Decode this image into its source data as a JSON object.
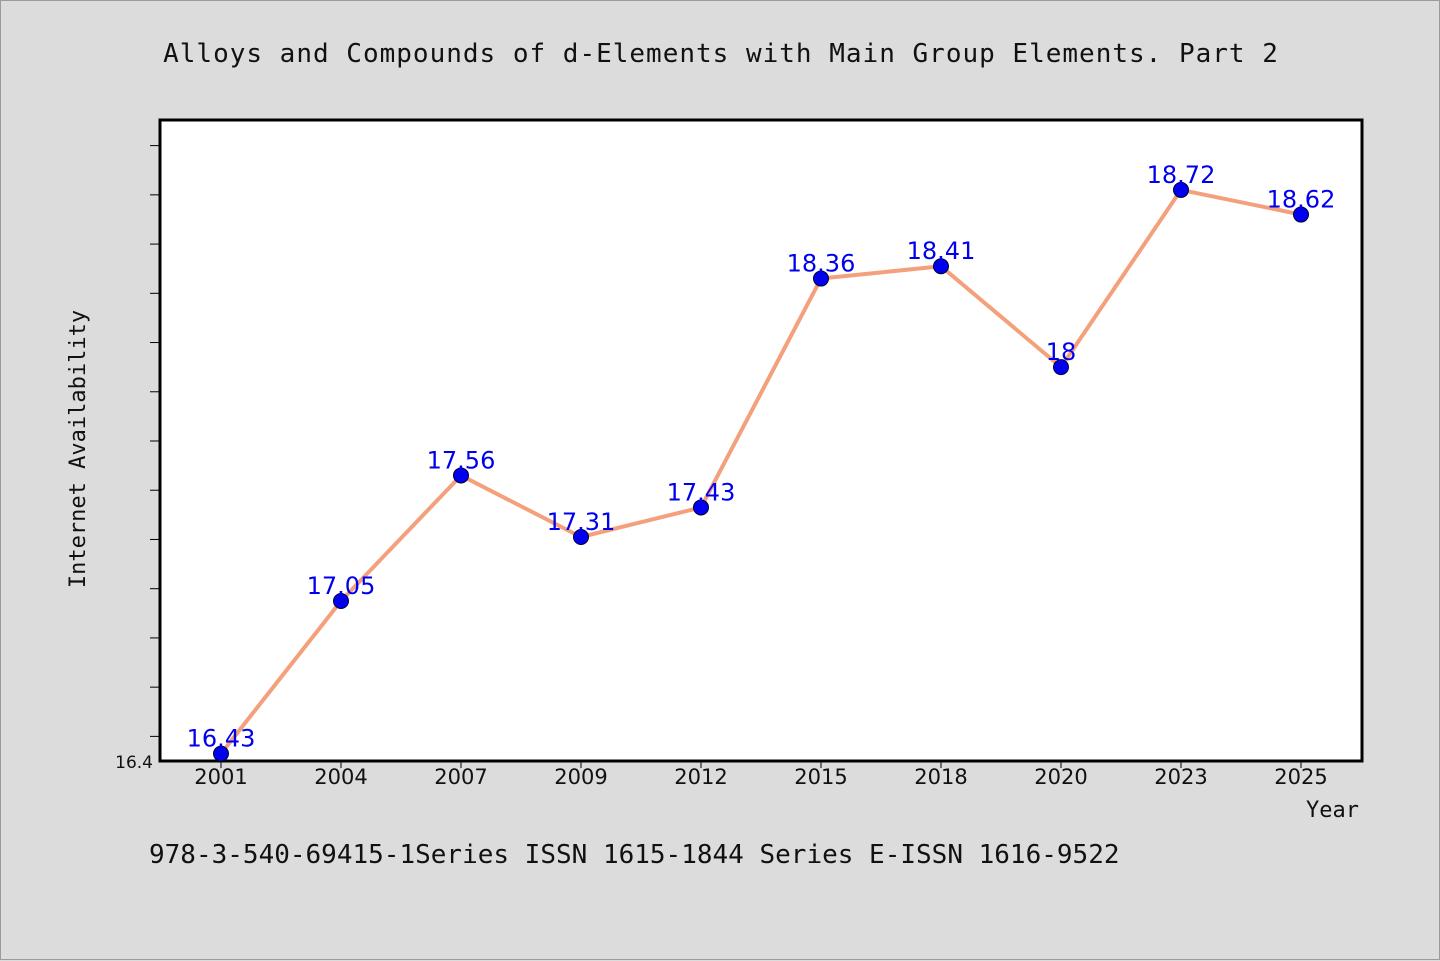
{
  "chart_data": {
    "type": "line",
    "title": "Alloys and Compounds of d-Elements with Main Group Elements. Part 2",
    "xlabel": "Year",
    "ylabel": "Internet Availability",
    "categories": [
      "2001",
      "2004",
      "2007",
      "2009",
      "2012",
      "2015",
      "2018",
      "2020",
      "2023",
      "2025"
    ],
    "series": [
      {
        "values": [
          16.43,
          17.05,
          17.56,
          17.31,
          17.43,
          18.36,
          18.41,
          18.0,
          18.72,
          18.62
        ],
        "labels": [
          "16.43",
          "17.05",
          "17.56",
          "17.31",
          "17.43",
          "18.36",
          "18.41",
          "18",
          "18.72",
          "18.62"
        ],
        "line_color": "#f4a07c",
        "marker_color": "#0000ee",
        "label_color": "#0000ee"
      }
    ],
    "ylim": [
      16.4,
      19.0
    ],
    "y_tick_labels": [
      "16.4"
    ],
    "grid": false,
    "legend": "none"
  },
  "footer": {
    "text": "978-3-540-69415-1Series ISSN 1615-1844 Series E-ISSN 1616-9522"
  }
}
